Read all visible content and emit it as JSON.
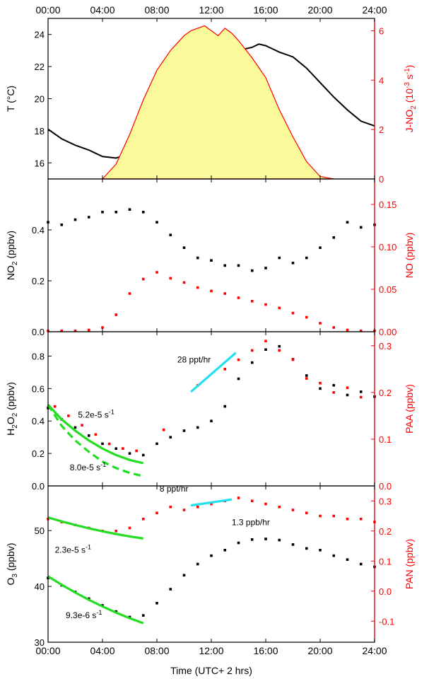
{
  "chart_data": [
    {
      "panel": "temperature-jno2",
      "type": "line",
      "x_ticks": [
        "00:00",
        "04:00",
        "08:00",
        "12:00",
        "16:00",
        "20:00",
        "24:00"
      ],
      "xlim": [
        0,
        24
      ],
      "ylabel": "T (°C)",
      "ylim": [
        15,
        25
      ],
      "y_ticks": [
        16,
        18,
        20,
        22,
        24
      ],
      "ylabel_right": "J-NO2 (10-3 s-1)",
      "ylabel_right_parts": {
        "base": "J-NO",
        "sub": "2",
        "mid": " (10",
        "sup1": "-3",
        "mid2": " s",
        "sup2": "-1",
        "end": ")"
      },
      "ylim_right": [
        0,
        6.5
      ],
      "y_ticks_right": [
        0,
        2,
        4,
        6
      ],
      "series": [
        {
          "axis": "left",
          "style": "line",
          "color": "#000000",
          "x": [
            0,
            1,
            2,
            3,
            4,
            5,
            6,
            7,
            8,
            9,
            10,
            11,
            12,
            13,
            14,
            15,
            15.5,
            16,
            17,
            18,
            19,
            20,
            21,
            22,
            23,
            24
          ],
          "y": [
            18.1,
            17.5,
            17.1,
            16.8,
            16.4,
            16.3,
            16.6,
            17.3,
            18.4,
            19.5,
            20.5,
            21.4,
            22.2,
            22.9,
            23.0,
            23.2,
            23.4,
            23.3,
            22.9,
            22.6,
            21.9,
            21.0,
            20.1,
            19.3,
            18.6,
            18.3
          ]
        },
        {
          "axis": "right",
          "style": "area",
          "color": "#ff0000",
          "fill": "#fbfa9b",
          "x": [
            4,
            5,
            6,
            7,
            8,
            9,
            10,
            10.5,
            11,
            11.5,
            12,
            12.5,
            13,
            13.5,
            14,
            15,
            16,
            17,
            18,
            19,
            20,
            21
          ],
          "y": [
            0,
            0.6,
            1.8,
            3.2,
            4.4,
            5.2,
            5.8,
            6.0,
            6.1,
            6.2,
            6.0,
            5.8,
            6.1,
            5.9,
            5.6,
            4.9,
            4.1,
            2.8,
            1.7,
            0.7,
            0.1,
            0
          ]
        }
      ]
    },
    {
      "panel": "no2-no",
      "type": "scatter",
      "ylabel": "NO2 (ppbv)",
      "ylabel_parts": {
        "base": "NO",
        "sub": "2",
        "end": " (ppbv)"
      },
      "ylim": [
        0,
        0.6
      ],
      "y_ticks": [
        0.0,
        0.2,
        0.4
      ],
      "y_tick_labels": [
        "0.0",
        "0.2",
        "0.4"
      ],
      "ylabel_right": "NO (ppbv)",
      "ylim_right": [
        0,
        0.18
      ],
      "y_ticks_right": [
        0,
        0.05,
        0.1,
        0.15
      ],
      "y_tick_labels_right": [
        "0.00",
        "0.05",
        "0.10",
        "0.15"
      ],
      "series": [
        {
          "axis": "left",
          "color": "#000000",
          "x": [
            0,
            1,
            2,
            3,
            4,
            5,
            6,
            7,
            8,
            9,
            10,
            11,
            12,
            13,
            14,
            15,
            16,
            17,
            18,
            19,
            20,
            21,
            22,
            23,
            24
          ],
          "y": [
            0.43,
            0.42,
            0.44,
            0.45,
            0.47,
            0.47,
            0.48,
            0.47,
            0.43,
            0.38,
            0.33,
            0.29,
            0.28,
            0.26,
            0.26,
            0.24,
            0.25,
            0.29,
            0.27,
            0.29,
            0.33,
            0.37,
            0.43,
            0.41,
            0.42
          ]
        },
        {
          "axis": "right",
          "color": "#ff0000",
          "x": [
            0,
            1,
            2,
            3,
            4,
            5,
            6,
            7,
            8,
            9,
            10,
            11,
            12,
            13,
            14,
            15,
            16,
            17,
            18,
            19,
            20,
            21,
            22,
            23,
            24
          ],
          "y": [
            0.001,
            0.001,
            0.001,
            0.002,
            0.005,
            0.02,
            0.045,
            0.062,
            0.07,
            0.063,
            0.058,
            0.052,
            0.048,
            0.045,
            0.04,
            0.036,
            0.032,
            0.028,
            0.022,
            0.017,
            0.01,
            0.005,
            0.002,
            0.001,
            0.001
          ]
        }
      ]
    },
    {
      "panel": "h2o2-paa",
      "type": "scatter",
      "ylabel": "H2O2 (ppbv)",
      "ylabel_parts": {
        "base": "H",
        "sub": "2",
        "mid": "O",
        "sub2": "2",
        "end": " (ppbv)"
      },
      "ylim": [
        0,
        0.95
      ],
      "y_ticks": [
        0.0,
        0.2,
        0.4,
        0.6,
        0.8
      ],
      "y_tick_labels": [
        "0.0",
        "0.2",
        "0.4",
        "0.6",
        "0.8"
      ],
      "ylabel_right": "PAA (ppbv)",
      "ylim_right": [
        0,
        0.33
      ],
      "y_ticks_right": [
        0,
        0.1,
        0.2,
        0.3
      ],
      "y_tick_labels_right": [
        "0.0",
        "0.1",
        "0.2",
        "0.3"
      ],
      "series": [
        {
          "axis": "left",
          "color": "#000000",
          "x": [
            0,
            1,
            2,
            3,
            4,
            5,
            6,
            7,
            8,
            9,
            10,
            11,
            12,
            13,
            14,
            15,
            16,
            17,
            18,
            19,
            20,
            21,
            22,
            23,
            24
          ],
          "y": [
            0.48,
            0.41,
            0.36,
            0.31,
            0.26,
            0.23,
            0.2,
            0.19,
            0.26,
            0.3,
            0.34,
            0.36,
            0.4,
            0.49,
            0.66,
            0.76,
            0.84,
            0.86,
            0.78,
            0.68,
            0.6,
            0.62,
            0.56,
            0.58,
            0.55
          ]
        },
        {
          "axis": "right",
          "color": "#ff0000",
          "x": [
            0.5,
            1.5,
            2.5,
            3.5,
            4.5,
            5.5,
            6.5,
            8.5,
            11,
            13,
            14,
            15,
            16,
            17,
            18,
            19,
            20,
            21,
            22,
            23
          ],
          "y": [
            0.17,
            0.15,
            0.13,
            0.11,
            0.09,
            0.08,
            0.075,
            0.12,
            0.215,
            0.25,
            0.27,
            0.29,
            0.31,
            0.29,
            0.27,
            0.23,
            0.22,
            0.2,
            0.21,
            0.19
          ]
        }
      ],
      "fits": [
        {
          "axis": "left",
          "style": "solid",
          "color": "#22dd22",
          "x": [
            0,
            1,
            2,
            3,
            4,
            5,
            6,
            7
          ],
          "y": [
            0.5,
            0.41,
            0.34,
            0.28,
            0.23,
            0.19,
            0.16,
            0.14
          ]
        },
        {
          "axis": "left",
          "style": "dashed",
          "color": "#22dd22",
          "x": [
            0,
            1,
            2,
            3,
            4,
            5,
            6,
            7
          ],
          "y": [
            0.5,
            0.37,
            0.28,
            0.21,
            0.15,
            0.11,
            0.08,
            0.06
          ]
        },
        {
          "axis": "left",
          "style": "solid",
          "color": "#22e0f0",
          "x": [
            10.5,
            13.8
          ],
          "y": [
            0.58,
            0.82
          ]
        }
      ],
      "annotations": [
        {
          "text": "28 ppt/hr",
          "x": 9.5,
          "y": 0.76
        },
        {
          "text": "8.0e-5 s-1",
          "x": 1.6,
          "y": 0.095,
          "base": "8.0e-5 s",
          "sup": "-1"
        },
        {
          "text": "5.2e-5 s-1",
          "x": 2.2,
          "y": 0.42,
          "base": "5.2e-5 s",
          "sup": "-1"
        }
      ]
    },
    {
      "panel": "o3-pan",
      "type": "scatter",
      "xlabel": "Time (UTC+ 2 hrs)",
      "x_ticks": [
        "00:00",
        "04:00",
        "08:00",
        "12:00",
        "16:00",
        "20:00",
        "24:00"
      ],
      "ylabel": "O3 (ppbv)",
      "ylabel_parts": {
        "base": "O",
        "sub": "3",
        "end": " (ppbv)"
      },
      "ylim": [
        30,
        58
      ],
      "y_ticks": [
        30,
        40,
        50
      ],
      "ylabel_right": "PAN (ppbv)",
      "ylim_right": [
        -0.17,
        0.35
      ],
      "y_ticks_right": [
        -0.1,
        0.0,
        0.1,
        0.2,
        0.3
      ],
      "y_tick_labels_right": [
        "-0.1",
        "0.0",
        "0.1",
        "0.2",
        "0.3"
      ],
      "series": [
        {
          "axis": "left",
          "color": "#000000",
          "x": [
            0,
            1,
            2,
            3,
            4,
            5,
            6,
            7,
            8,
            9,
            10,
            11,
            12,
            13,
            14,
            15,
            16,
            17,
            18,
            19,
            20,
            21,
            22,
            23,
            24
          ],
          "y": [
            41.5,
            40.2,
            39.0,
            37.8,
            36.6,
            35.5,
            34.5,
            34.8,
            37.0,
            39.5,
            42.0,
            44.0,
            45.5,
            46.5,
            47.8,
            48.4,
            48.5,
            48.3,
            47.5,
            46.8,
            46.5,
            45.5,
            44.8,
            44.0,
            43.5
          ]
        },
        {
          "axis": "right",
          "color": "#ff0000",
          "x": [
            0,
            1,
            2,
            3,
            4,
            5,
            6,
            7,
            8,
            9,
            10,
            11,
            12,
            13,
            14,
            15,
            16,
            17,
            18,
            19,
            20,
            21,
            22,
            23,
            24
          ],
          "y": [
            0.24,
            0.23,
            0.22,
            0.21,
            0.2,
            0.2,
            0.21,
            0.24,
            0.26,
            0.28,
            0.27,
            0.28,
            0.29,
            0.3,
            0.31,
            0.3,
            0.29,
            0.28,
            0.27,
            0.26,
            0.25,
            0.25,
            0.24,
            0.24,
            0.23
          ]
        }
      ],
      "fits": [
        {
          "axis": "right",
          "style": "solid",
          "color": "#22dd22",
          "x": [
            0,
            1,
            2,
            3,
            4,
            5,
            6,
            7
          ],
          "y": [
            0.245,
            0.232,
            0.22,
            0.209,
            0.199,
            0.19,
            0.182,
            0.175
          ]
        },
        {
          "axis": "left",
          "style": "solid",
          "color": "#22dd22",
          "x": [
            0,
            1,
            2,
            3,
            4,
            5,
            6,
            7
          ],
          "y": [
            41.8,
            40.3,
            38.9,
            37.6,
            36.4,
            35.3,
            34.3,
            33.4
          ]
        },
        {
          "axis": "right",
          "style": "solid",
          "color": "#22e0f0",
          "x": [
            10.5,
            13.5
          ],
          "y": [
            0.285,
            0.305
          ]
        }
      ],
      "annotations": [
        {
          "text": "8 ppt/hr",
          "x": 8.2,
          "y": 57.0
        },
        {
          "text": "1.3 ppb/hr",
          "x": 13.5,
          "y": 51.0
        },
        {
          "text": "2.3e-5 s-1",
          "x": 0.5,
          "y": 46.0,
          "base": "2.3e-5 s",
          "sup": "-1"
        },
        {
          "text": "9.3e-6 s-1",
          "x": 1.3,
          "y": 34.3,
          "base": "9.3e-6 s",
          "sup": "-1"
        }
      ]
    }
  ]
}
